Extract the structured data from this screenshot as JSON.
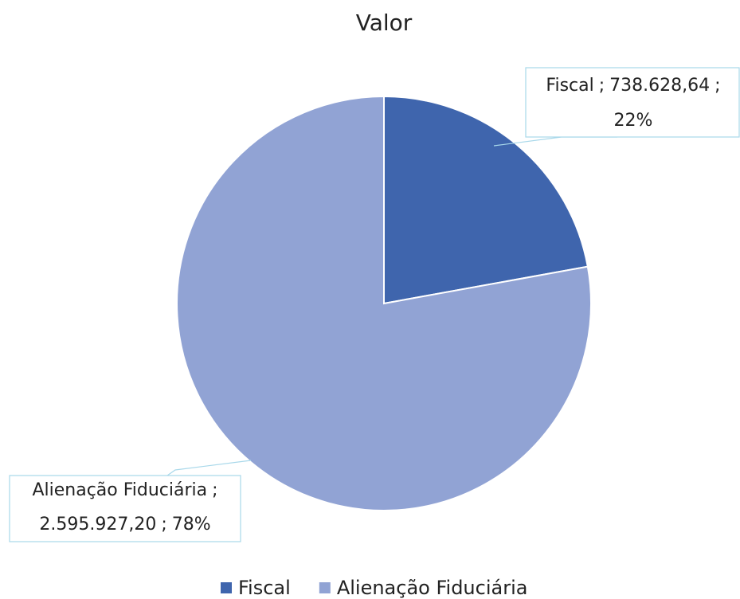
{
  "chart_data": {
    "type": "pie",
    "title": "Valor",
    "categories": [
      "Fiscal",
      "Alienação Fiduciária"
    ],
    "values": [
      738628.64,
      2595927.2
    ],
    "value_labels": [
      "738.628,64",
      "2.595.927,20"
    ],
    "percent_labels": [
      "22%",
      "78%"
    ],
    "label_separator": ";",
    "colors": [
      "#3f65ad",
      "#91a3d4"
    ],
    "legend": "bottom"
  }
}
